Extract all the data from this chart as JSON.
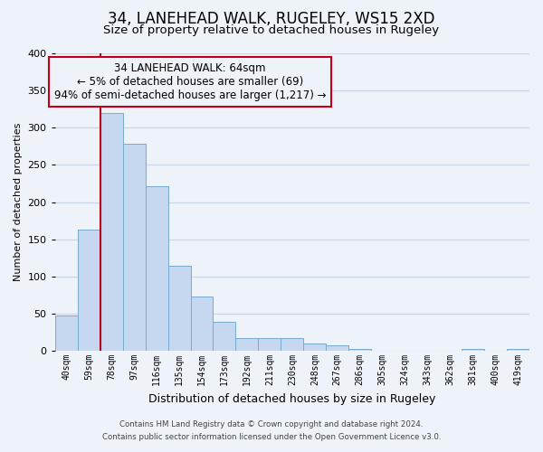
{
  "title": "34, LANEHEAD WALK, RUGELEY, WS15 2XD",
  "subtitle": "Size of property relative to detached houses in Rugeley",
  "xlabel": "Distribution of detached houses by size in Rugeley",
  "ylabel": "Number of detached properties",
  "footer_line1": "Contains HM Land Registry data © Crown copyright and database right 2024.",
  "footer_line2": "Contains public sector information licensed under the Open Government Licence v3.0.",
  "annotation_line1": "34 LANEHEAD WALK: 64sqm",
  "annotation_line2": "← 5% of detached houses are smaller (69)",
  "annotation_line3": "94% of semi-detached houses are larger (1,217) →",
  "bar_labels": [
    "40sqm",
    "59sqm",
    "78sqm",
    "97sqm",
    "116sqm",
    "135sqm",
    "154sqm",
    "173sqm",
    "192sqm",
    "211sqm",
    "230sqm",
    "248sqm",
    "267sqm",
    "286sqm",
    "305sqm",
    "324sqm",
    "343sqm",
    "362sqm",
    "381sqm",
    "400sqm",
    "419sqm"
  ],
  "bar_heights": [
    47,
    163,
    320,
    278,
    221,
    114,
    73,
    39,
    17,
    17,
    17,
    10,
    7,
    3,
    0,
    0,
    0,
    0,
    3,
    0,
    3
  ],
  "bar_color": "#c5d8f0",
  "bar_edge_color": "#7aaad0",
  "highlight_bar_color": "#c0001a",
  "ylim": [
    0,
    400
  ],
  "yticks": [
    0,
    50,
    100,
    150,
    200,
    250,
    300,
    350,
    400
  ],
  "grid_color": "#c8d4e8",
  "bg_color": "#eef2f9",
  "title_fontsize": 12,
  "subtitle_fontsize": 9.5,
  "annotation_box_edgecolor": "#c0001a",
  "vline_x_index": 1,
  "vline_color": "#c0001a"
}
